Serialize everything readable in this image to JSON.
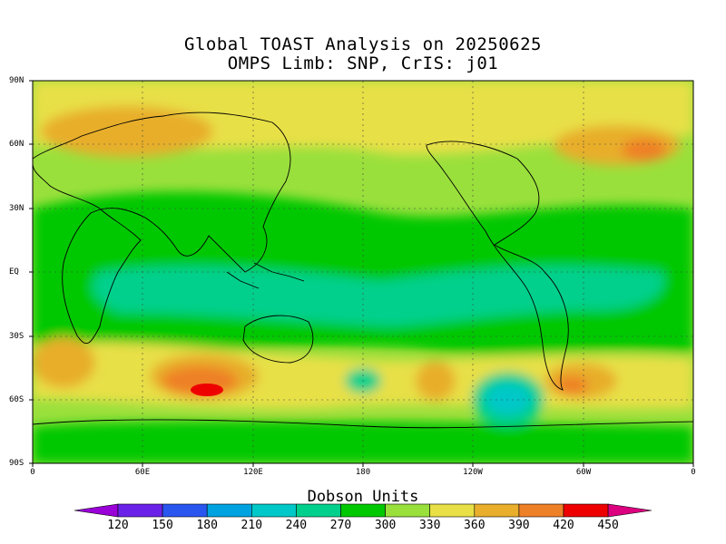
{
  "title_line1": "Global TOAST Analysis on 20250625",
  "title_line2": "OMPS Limb: SNP,  CrIS: j01",
  "lat_labels": [
    "90N",
    "60N",
    "30N",
    "EQ",
    "30S",
    "60S",
    "90S"
  ],
  "lon_labels": [
    "0",
    "60E",
    "120E",
    "180",
    "120W",
    "60W",
    "0"
  ],
  "colorbar": {
    "title": "Dobson Units",
    "ticks": [
      "120",
      "150",
      "180",
      "210",
      "240",
      "270",
      "300",
      "330",
      "360",
      "390",
      "420",
      "450"
    ],
    "colors": [
      "#9a00d8",
      "#6a22e8",
      "#2a56f0",
      "#00a2e0",
      "#00c8c8",
      "#00d08c",
      "#00c800",
      "#9ae03c",
      "#e8e046",
      "#e8ae2c",
      "#ee8028",
      "#ee0000",
      "#dc0080"
    ]
  }
}
